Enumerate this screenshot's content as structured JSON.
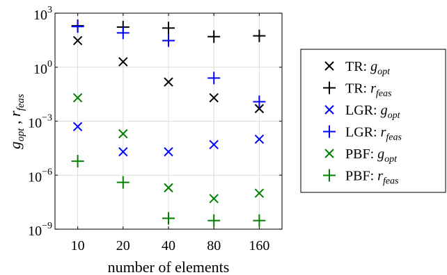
{
  "chart_data": {
    "type": "scatter",
    "xlabel": "number of elements",
    "ylabel": "g_opt , r_feas",
    "y_scale": "log10",
    "ylim_exponent": [
      -9,
      3
    ],
    "ytick_exponents": [
      -9,
      -6,
      -3,
      0,
      3
    ],
    "categories": [
      "10",
      "20",
      "40",
      "80",
      "160"
    ],
    "grid": true,
    "legend_position": "right-outside",
    "series": [
      {
        "name": "TR: g_opt",
        "prefix": "TR: ",
        "var": "g",
        "sub": "opt",
        "marker": "x",
        "color": "#000000",
        "values": [
          30,
          2,
          0.15,
          0.02,
          0.005
        ]
      },
      {
        "name": "TR: r_feas",
        "prefix": "TR: ",
        "var": "r",
        "sub": "feas",
        "marker": "+",
        "color": "#000000",
        "values": [
          200,
          170,
          150,
          50,
          55
        ]
      },
      {
        "name": "LGR: g_opt",
        "prefix": "LGR: ",
        "var": "g",
        "sub": "opt",
        "marker": "x",
        "color": "#0000ff",
        "values": [
          0.0005,
          2e-05,
          2e-05,
          5e-05,
          0.0001
        ]
      },
      {
        "name": "LGR: r_feas",
        "prefix": "LGR: ",
        "var": "r",
        "sub": "feas",
        "marker": "+",
        "color": "#0000ff",
        "values": [
          180,
          80,
          30,
          0.25,
          0.012
        ]
      },
      {
        "name": "PBF: g_opt",
        "prefix": "PBF: ",
        "var": "g",
        "sub": "opt",
        "marker": "x",
        "color": "#008000",
        "values": [
          0.02,
          0.0002,
          2e-07,
          5e-08,
          1e-07
        ]
      },
      {
        "name": "PBF: r_feas",
        "prefix": "PBF: ",
        "var": "r",
        "sub": "feas",
        "marker": "+",
        "color": "#008000",
        "values": [
          6e-06,
          4e-07,
          4e-09,
          3e-09,
          3e-09
        ]
      }
    ]
  }
}
